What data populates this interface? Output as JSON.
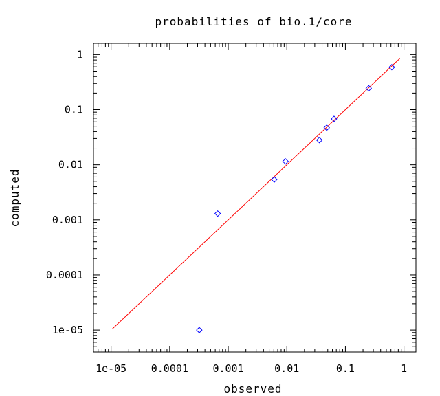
{
  "chart_data": {
    "type": "scatter",
    "title": "probabilities of bio.1/core",
    "xlabel": "observed",
    "ylabel": "computed",
    "xscale": "log",
    "yscale": "log",
    "xlim": [
      5e-06,
      1.6
    ],
    "ylim": [
      4e-06,
      1.6
    ],
    "xticks": [
      {
        "value": 1e-05,
        "label": "1e-05"
      },
      {
        "value": 0.0001,
        "label": "0.0001"
      },
      {
        "value": 0.001,
        "label": "0.001"
      },
      {
        "value": 0.01,
        "label": "0.01"
      },
      {
        "value": 0.1,
        "label": "0.1"
      },
      {
        "value": 1,
        "label": "1"
      }
    ],
    "yticks": [
      {
        "value": 1e-05,
        "label": "1e-05"
      },
      {
        "value": 0.0001,
        "label": "0.0001"
      },
      {
        "value": 0.001,
        "label": "0.001"
      },
      {
        "value": 0.01,
        "label": "0.01"
      },
      {
        "value": 0.1,
        "label": "0.1"
      },
      {
        "value": 1,
        "label": "1"
      }
    ],
    "grid": false,
    "series": [
      {
        "marker": "diamond",
        "color": "#0000ff",
        "points": [
          {
            "x": 0.00032,
            "y": 1e-05
          },
          {
            "x": 0.00066,
            "y": 0.0013
          },
          {
            "x": 0.0061,
            "y": 0.0054
          },
          {
            "x": 0.0095,
            "y": 0.0115
          },
          {
            "x": 0.036,
            "y": 0.028
          },
          {
            "x": 0.048,
            "y": 0.047
          },
          {
            "x": 0.064,
            "y": 0.068
          },
          {
            "x": 0.25,
            "y": 0.245
          },
          {
            "x": 0.62,
            "y": 0.59
          }
        ]
      },
      {
        "line": "reference",
        "color": "#ff0000",
        "points": [
          {
            "x": 1.05e-05,
            "y": 1.05e-05
          },
          {
            "x": 0.85,
            "y": 0.85
          }
        ]
      }
    ]
  }
}
